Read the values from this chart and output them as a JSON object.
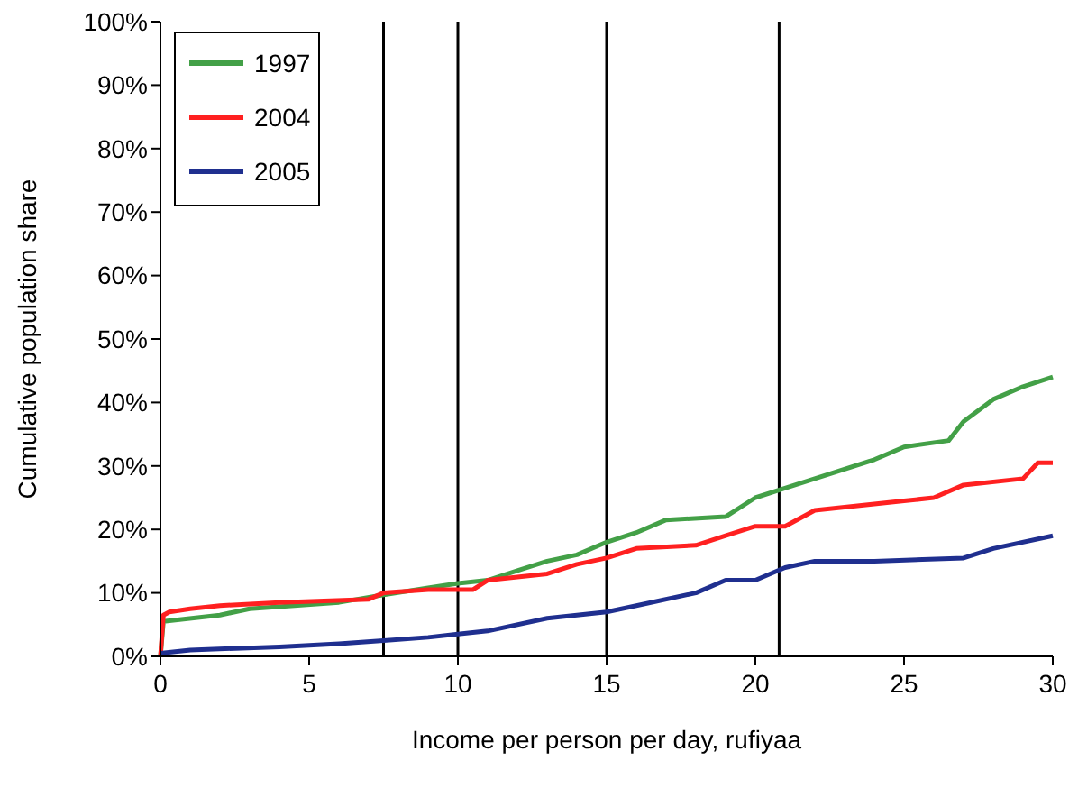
{
  "chart_data": {
    "type": "line",
    "xlabel": "Income per person per day, rufiyaa",
    "ylabel": "Cumulative population share",
    "xlim": [
      0,
      30
    ],
    "xticks": [
      0,
      5,
      10,
      15,
      20,
      25,
      30
    ],
    "ylim": [
      0,
      100
    ],
    "yticks": [
      {
        "value": 0,
        "label": "0%"
      },
      {
        "value": 10,
        "label": "10%"
      },
      {
        "value": 20,
        "label": "20%"
      },
      {
        "value": 30,
        "label": "30%"
      },
      {
        "value": 40,
        "label": "40%"
      },
      {
        "value": 50,
        "label": "50%"
      },
      {
        "value": 60,
        "label": "60%"
      },
      {
        "value": 70,
        "label": "70%"
      },
      {
        "value": 80,
        "label": "80%"
      },
      {
        "value": 90,
        "label": "90%"
      },
      {
        "value": 100,
        "label": "100%"
      }
    ],
    "grid": false,
    "legend": "top left",
    "marker": "none",
    "line_style": "solid",
    "ref_lines": [
      {
        "axis": "x",
        "value": 7.5,
        "color": "#000000"
      },
      {
        "axis": "x",
        "value": 10,
        "color": "#000000"
      },
      {
        "axis": "x",
        "value": 15,
        "color": "#000000"
      },
      {
        "axis": "x",
        "value": 20.8,
        "color": "#000000"
      }
    ],
    "series": [
      {
        "name": "1997",
        "color": "#43a047",
        "x": [
          0,
          0.1,
          2,
          3,
          6,
          7.5,
          9,
          10,
          11,
          12,
          13,
          14,
          15,
          16,
          17,
          19,
          20,
          21,
          22,
          24,
          25,
          26.5,
          27,
          28,
          29,
          30
        ],
        "values": [
          0,
          5.5,
          6.5,
          7.5,
          8.5,
          9.7,
          10.8,
          11.5,
          12,
          13.5,
          15,
          16,
          18,
          19.5,
          21.5,
          22,
          25,
          26.5,
          28,
          31,
          33,
          34,
          37,
          40.5,
          42.5,
          44
        ]
      },
      {
        "name": "2004",
        "color": "#ff2020",
        "x": [
          0,
          0.1,
          0.3,
          1,
          2,
          4,
          7,
          7.5,
          9,
          10.5,
          11,
          13,
          14,
          15,
          16,
          18,
          19,
          20,
          21,
          22,
          25,
          26,
          27,
          29,
          29.5,
          30
        ],
        "values": [
          0,
          6.5,
          7,
          7.5,
          8,
          8.5,
          9,
          10,
          10.5,
          10.5,
          12,
          13,
          14.5,
          15.5,
          17,
          17.5,
          19,
          20.5,
          20.5,
          23,
          24.5,
          25,
          27,
          28,
          30.5,
          30.5
        ]
      },
      {
        "name": "2005",
        "color": "#1f2f8f",
        "x": [
          0,
          1,
          4,
          6,
          7.5,
          9,
          10,
          11,
          13,
          15,
          16,
          18,
          19,
          20,
          21,
          22,
          24,
          27,
          28,
          30
        ],
        "values": [
          0.5,
          1,
          1.5,
          2,
          2.5,
          3,
          3.5,
          4,
          6,
          7,
          8,
          10,
          12,
          12,
          14,
          15,
          15,
          15.5,
          17,
          19
        ]
      }
    ]
  }
}
